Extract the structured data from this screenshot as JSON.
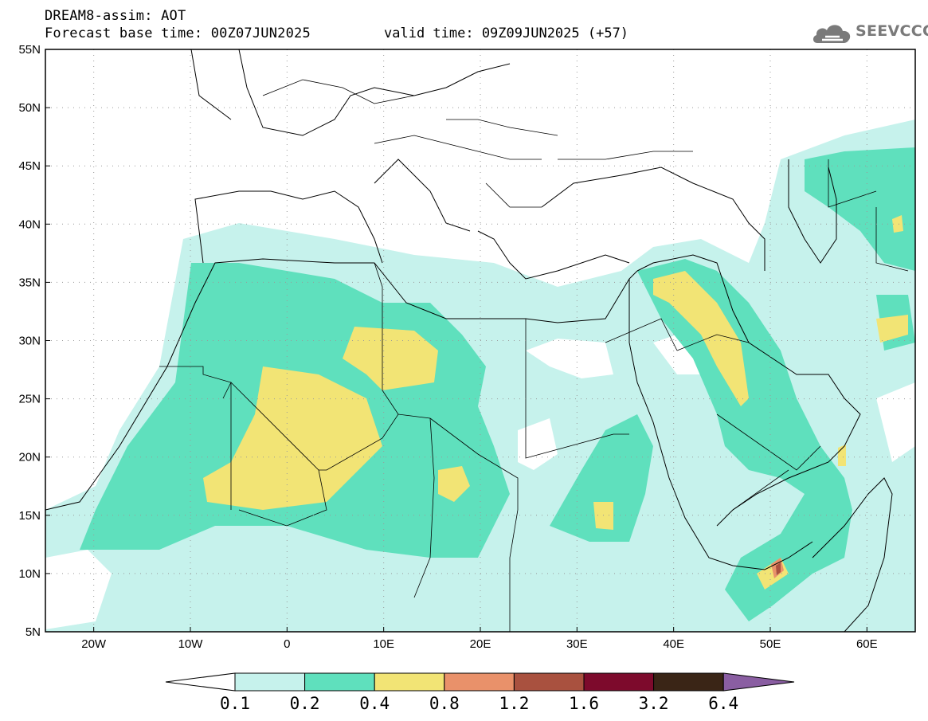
{
  "header": {
    "title": "DREAM8-assim: AOT",
    "base_time": "Forecast base time: 00Z07JUN2025",
    "valid_time": "valid time: 09Z09JUN2025 (+57)"
  },
  "logo": {
    "text": "SEEVCCC",
    "icon": "cloud-icon"
  },
  "map": {
    "lon_labels": [
      "20W",
      "10W",
      "0",
      "10E",
      "20E",
      "30E",
      "40E",
      "50E",
      "60E"
    ],
    "lat_labels": [
      "55N",
      "50N",
      "45N",
      "40N",
      "35N",
      "30N",
      "25N",
      "20N",
      "15N",
      "10N",
      "5N"
    ],
    "grid": "dotted",
    "extent": {
      "lon": [
        -25,
        65
      ],
      "lat": [
        5,
        55
      ]
    }
  },
  "colorbar": {
    "labels": [
      "0.1",
      "0.2",
      "0.4",
      "0.8",
      "1.2",
      "1.6",
      "3.2",
      "6.4"
    ],
    "colors": [
      "#ffffff",
      "#c6f2ec",
      "#5fe0bd",
      "#f2e475",
      "#e9916a",
      "#a9513f",
      "#7d0a2c",
      "#3a2516",
      "#8a5ea2"
    ],
    "extend": "both"
  }
}
